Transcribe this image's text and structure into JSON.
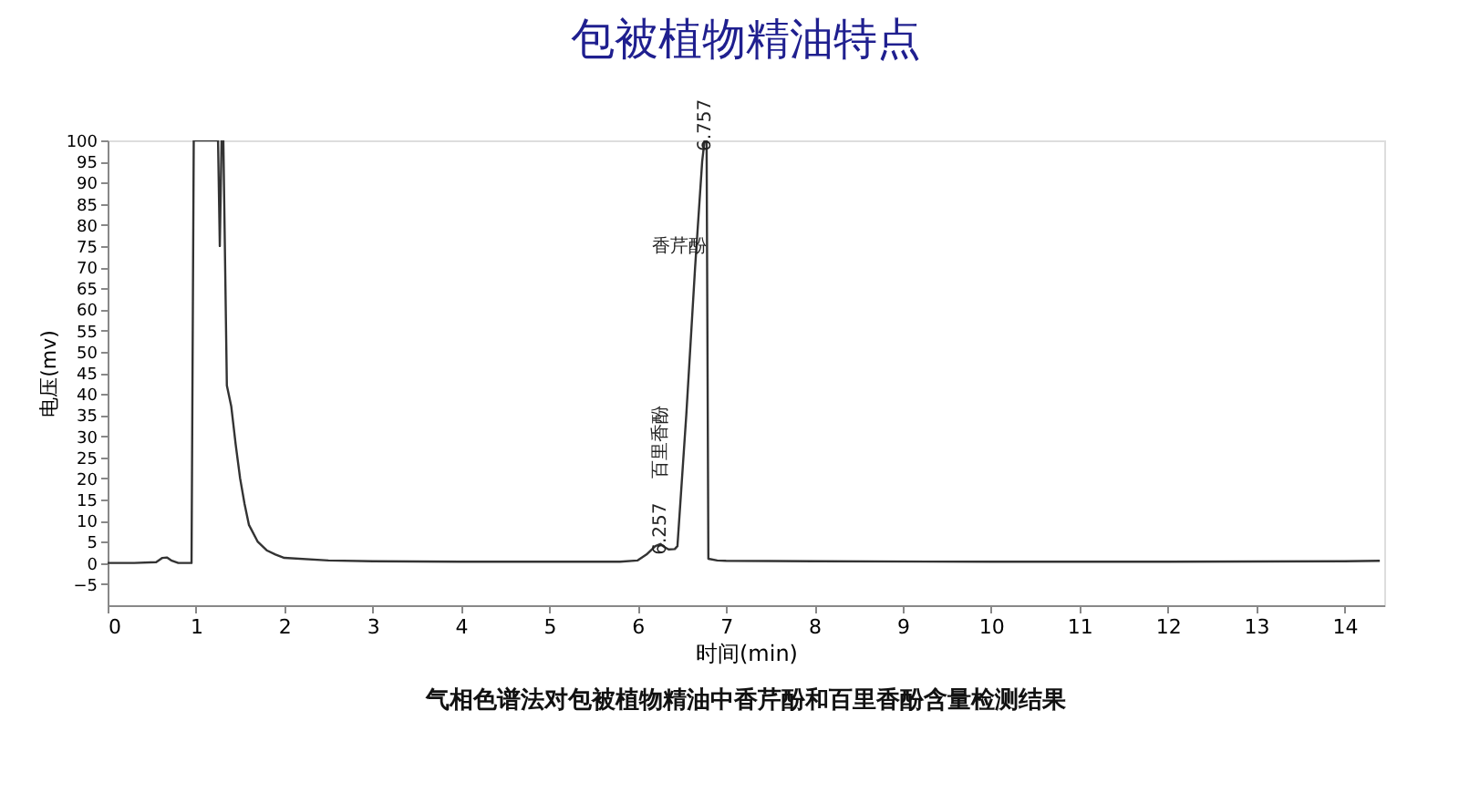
{
  "chart_data": {
    "type": "line",
    "title": "包被植物精油特点",
    "xlabel": "时间(min)",
    "ylabel": "电压(mv)",
    "x": [
      0,
      0.3,
      0.55,
      0.62,
      0.67,
      0.72,
      0.8,
      0.95,
      0.965,
      0.975,
      1.0,
      1.2,
      1.25,
      1.27,
      1.29,
      1.31,
      1.35,
      1.4,
      1.45,
      1.5,
      1.55,
      1.6,
      1.7,
      1.8,
      1.9,
      2.0,
      2.5,
      3.0,
      4.0,
      5.0,
      5.8,
      6.0,
      6.1,
      6.2,
      6.257,
      6.3,
      6.35,
      6.42,
      6.45,
      6.55,
      6.65,
      6.73,
      6.757,
      6.78,
      6.8,
      6.9,
      7.0,
      8.0,
      10.0,
      12.0,
      14.0,
      14.4
    ],
    "series": [
      {
        "color": "#333333",
        "values": [
          0,
          0,
          0.2,
          1.2,
          1.3,
          0.6,
          0,
          0,
          60,
          100,
          100,
          100,
          100,
          75,
          100,
          100,
          42,
          37,
          28,
          20,
          14,
          9,
          5,
          3,
          2,
          1.2,
          0.6,
          0.4,
          0.3,
          0.3,
          0.3,
          0.6,
          2,
          4,
          4.5,
          3.8,
          3.2,
          3.3,
          4,
          35,
          70,
          95,
          100,
          100,
          1,
          0.6,
          0.5,
          0.4,
          0.3,
          0.3,
          0.4,
          0.5
        ]
      }
    ],
    "xlim": [
      0,
      14.45
    ],
    "ylim": [
      -10,
      100
    ],
    "xticks": [
      0,
      1,
      2,
      3,
      4,
      5,
      6,
      7,
      8,
      9,
      10,
      11,
      12,
      13,
      14
    ],
    "yticks": [
      -5,
      0,
      5,
      10,
      15,
      20,
      25,
      30,
      35,
      40,
      45,
      50,
      55,
      60,
      65,
      70,
      75,
      80,
      85,
      90,
      95,
      100
    ],
    "grid": false,
    "marker": "none",
    "line_style": "solid",
    "annotations": [
      {
        "text": "6.257",
        "x": 6.257,
        "y": 4.5
      },
      "百里香酚",
      {
        "text": "6.757",
        "x": 6.757,
        "y": 100
      },
      "香芹酚",
      "气相色谱法对包被植物精油中香芹酚和百里香酚含量检测结果"
    ]
  }
}
